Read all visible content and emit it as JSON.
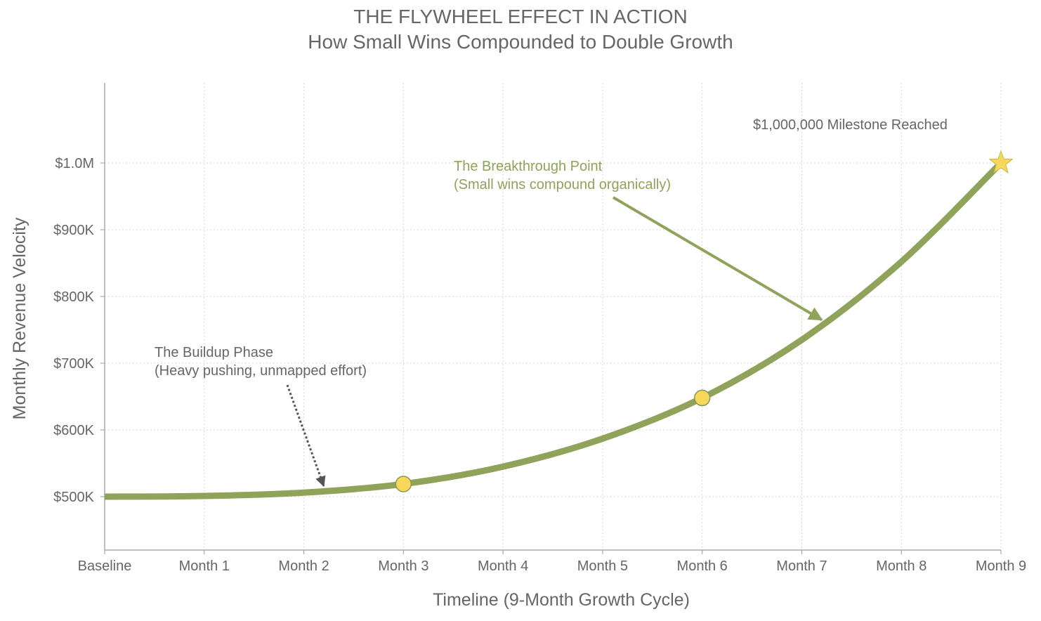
{
  "chart_data": {
    "type": "line",
    "title": "THE FLYWHEEL EFFECT IN ACTION",
    "subtitle": "How Small Wins Compounded to Double Growth",
    "xlabel": "Timeline (9-Month Growth Cycle)",
    "ylabel": "Monthly Revenue Velocity",
    "categories": [
      "Baseline",
      "Month 1",
      "Month 2",
      "Month 3",
      "Month 4",
      "Month 5",
      "Month 6",
      "Month 7",
      "Month 8",
      "Month 9"
    ],
    "y_ticks": [
      500000,
      600000,
      700000,
      800000,
      900000,
      1000000
    ],
    "y_tick_labels": [
      "$500K",
      "$600K",
      "$700K",
      "$800K",
      "$900K",
      "$1.0M"
    ],
    "ylim": [
      420000,
      1120000
    ],
    "grid": true,
    "series": [
      {
        "values": [
          500000,
          501000,
          506000,
          519000,
          545000,
          587000,
          648000,
          735000,
          852000,
          1000000
        ],
        "color": "#8fa35a"
      }
    ],
    "highlight_points": [
      {
        "x_index": 3,
        "value": 519000,
        "marker": "circle",
        "color": "#f7d85a"
      },
      {
        "x_index": 6,
        "value": 648000,
        "marker": "circle",
        "color": "#f7d85a"
      },
      {
        "x_index": 9,
        "value": 1000000,
        "marker": "star",
        "color": "#f7d85a"
      }
    ],
    "annotations": [
      {
        "id": "buildup",
        "lines": [
          "The Buildup Phase",
          "(Heavy pushing, unmapped effort)"
        ],
        "color": "#666666",
        "arrow_style": "dotted",
        "target": {
          "x_index": 2.2,
          "value": 516000
        }
      },
      {
        "id": "breakthrough",
        "lines": [
          "The Breakthrough Point",
          "(Small wins compound organically)"
        ],
        "color": "#8fa35a",
        "arrow_style": "solid",
        "target": {
          "x_index": 7.2,
          "value": 765000
        }
      },
      {
        "id": "milestone",
        "lines": [
          "$1,000,000 Milestone Reached"
        ],
        "color": "#666666",
        "arrow_style": "none"
      }
    ]
  }
}
